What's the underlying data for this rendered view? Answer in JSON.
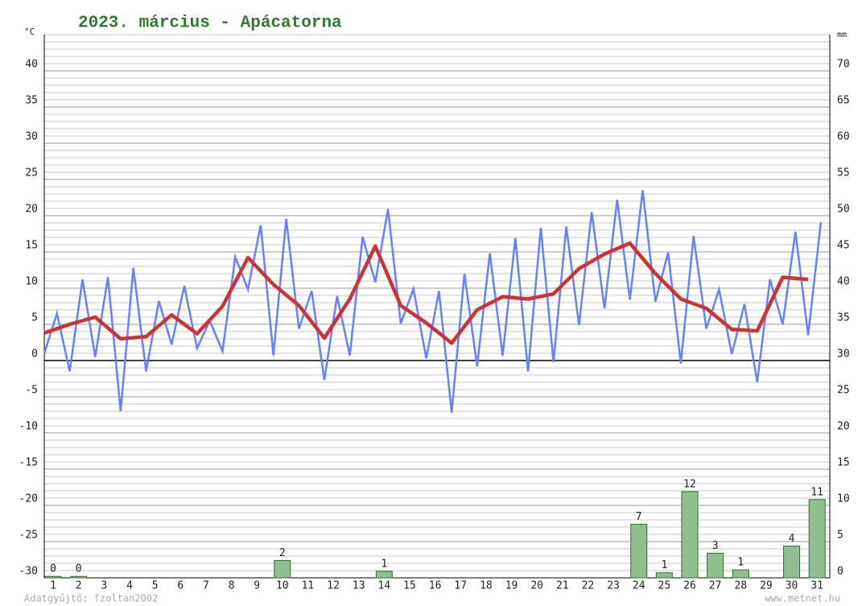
{
  "chart_data": {
    "type": "line",
    "title": "2023. március - Apácatorna",
    "y_unit": "°C",
    "y2_unit": "mm",
    "credit_left": "Adatgyűjtő: fzoltan2002",
    "credit_right": "www.metnet.hu",
    "x": [
      1,
      2,
      3,
      4,
      5,
      6,
      7,
      8,
      9,
      10,
      11,
      12,
      13,
      14,
      15,
      16,
      17,
      18,
      19,
      20,
      21,
      22,
      23,
      24,
      25,
      26,
      27,
      28,
      29,
      30,
      31
    ],
    "xlim": [
      0.65,
      31.5
    ],
    "ylim": [
      -30,
      45
    ],
    "yticks": [
      -30,
      -25,
      -20,
      -15,
      -10,
      -5,
      0,
      5,
      10,
      15,
      20,
      25,
      30,
      35,
      40
    ],
    "y2lim": [
      0,
      75
    ],
    "y2ticks": [
      0,
      5,
      10,
      15,
      20,
      25,
      30,
      35,
      40,
      45,
      50,
      55,
      60,
      65,
      70
    ],
    "grid": true,
    "temp_color": "#6680ff",
    "mean_color": "#cc3333",
    "bar_color": "#8fbf8f",
    "temp_min": [
      1.0,
      -1.5,
      0.5,
      -7.0,
      -1.5,
      2.2,
      1.7,
      1.3,
      9.8,
      0.7,
      4.4,
      -2.7,
      0.7,
      10.8,
      5.1,
      0.3,
      -7.2,
      -0.8,
      0.7,
      -1.5,
      -0.2,
      4.9,
      7.2,
      8.4,
      8.1,
      -0.4,
      4.4,
      0.9,
      -3.0,
      5.0,
      3.5
    ],
    "temp_max": [
      6.5,
      11.2,
      11.5,
      12.8,
      8.2,
      10.3,
      5.5,
      14.3,
      18.7,
      19.6,
      9.6,
      8.9,
      17.1,
      20.9,
      9.9,
      9.6,
      12.0,
      14.8,
      16.9,
      18.3,
      18.5,
      20.5,
      22.2,
      23.5,
      14.9,
      17.2,
      9.8,
      7.8,
      11.2,
      17.8,
      19.1
    ],
    "temp_mean": [
      3.8,
      5.0,
      6.0,
      3.0,
      3.3,
      6.3,
      3.7,
      7.5,
      14.2,
      10.5,
      7.6,
      3.1,
      8.5,
      15.8,
      7.6,
      5.2,
      2.4,
      7.0,
      8.8,
      8.5,
      9.2,
      12.7,
      14.7,
      16.2,
      12.0,
      8.5,
      7.2,
      4.3,
      4.1,
      11.5,
      11.2
    ],
    "precip": {
      "axis": "y2",
      "values": [
        0.2,
        0.2,
        null,
        null,
        null,
        null,
        null,
        null,
        null,
        2.4,
        null,
        null,
        null,
        0.9,
        null,
        null,
        null,
        null,
        null,
        null,
        null,
        null,
        null,
        7.4,
        0.7,
        11.9,
        3.4,
        1.1,
        null,
        4.4,
        10.8
      ],
      "value_labels": [
        "0",
        "0",
        null,
        null,
        null,
        null,
        null,
        null,
        null,
        "2",
        null,
        null,
        null,
        "1",
        null,
        null,
        null,
        null,
        null,
        null,
        null,
        null,
        null,
        "7",
        "1",
        "12",
        "3",
        "1",
        null,
        "4",
        "11"
      ]
    }
  }
}
